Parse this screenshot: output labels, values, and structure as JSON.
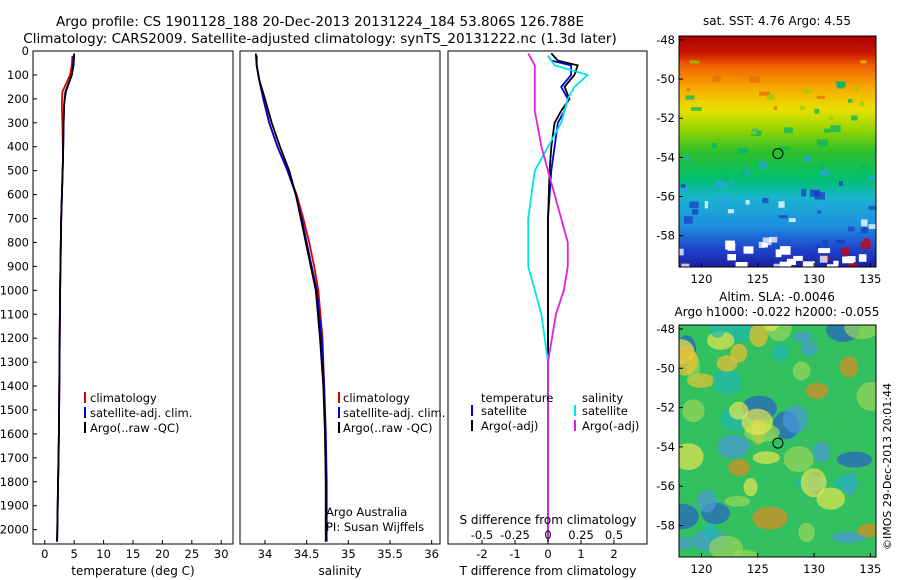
{
  "header": {
    "line1": "Argo profile: CS 1901128_188 20-Dec-2013 20131224_184 53.806S 126.788E",
    "line2": "Climatology: CARS2009. Satellite-adjusted climatology: synTS_20131222.nc (1.3d later)"
  },
  "colors": {
    "climatology": "#dd0000",
    "satellite": "#0000dd",
    "argo": "#000000",
    "sat_salinity": "#00e5e5",
    "argo_salinity": "#dd22dd"
  },
  "depth_axis": {
    "ylim": [
      0,
      2060
    ],
    "ticks": [
      "0",
      "100",
      "200",
      "300",
      "400",
      "500",
      "600",
      "700",
      "800",
      "900",
      "1000",
      "1100",
      "1200",
      "1300",
      "1400",
      "1500",
      "1600",
      "1700",
      "1800",
      "1900",
      "2000"
    ]
  },
  "chart_data": [
    {
      "type": "line",
      "xlabel": "temperature (deg C)",
      "ylabel": "",
      "xlim": [
        -2,
        32
      ],
      "ylim": [
        0,
        2060
      ],
      "xticks": [
        "0",
        "5",
        "10",
        "15",
        "20",
        "25",
        "30"
      ],
      "legend": {
        "placement": "bottom-left",
        "entries": [
          "climatology",
          "satellite-adj. clim.",
          "Argo(..raw -QC)"
        ]
      },
      "series": [
        {
          "name": "climatology",
          "x": [
            4.7,
            4.6,
            4.3,
            3.0,
            2.9,
            3.0,
            3.1,
            2.8,
            2.6,
            2.5,
            2.4,
            2.2,
            2.1
          ],
          "y": [
            20,
            60,
            100,
            170,
            220,
            300,
            450,
            700,
            1000,
            1300,
            1600,
            1900,
            2050
          ]
        },
        {
          "name": "satellite-adj. clim.",
          "x": [
            4.9,
            4.8,
            4.6,
            3.6,
            3.3,
            3.2,
            3.1,
            2.8,
            2.6,
            2.5,
            2.4,
            2.2,
            2.1
          ],
          "y": [
            20,
            60,
            100,
            170,
            220,
            300,
            450,
            700,
            1000,
            1300,
            1600,
            1900,
            2050
          ]
        },
        {
          "name": "Argo(..raw -QC)",
          "x": [
            5.0,
            4.9,
            4.6,
            3.5,
            3.3,
            3.2,
            3.1,
            2.8,
            2.6,
            2.5,
            2.4,
            2.2,
            2.1
          ],
          "y": [
            10,
            60,
            100,
            170,
            220,
            300,
            450,
            700,
            1000,
            1300,
            1600,
            1900,
            2050
          ]
        }
      ]
    },
    {
      "type": "line",
      "xlabel": "salinity",
      "ylabel": "",
      "xlim": [
        33.7,
        36.1
      ],
      "ylim": [
        0,
        2060
      ],
      "xticks": [
        "34",
        "34.5",
        "35",
        "35.5",
        "36"
      ],
      "legend": {
        "placement": "bottom-right",
        "entries": [
          "climatology",
          "satellite-adj. clim.",
          "Argo(..raw -QC)"
        ]
      },
      "annotations": [
        "Argo Australia",
        "PI: Susan Wijffels"
      ],
      "series": [
        {
          "name": "climatology",
          "x": [
            33.9,
            33.9,
            33.93,
            33.98,
            34.05,
            34.15,
            34.27,
            34.38,
            34.46,
            34.53,
            34.59,
            34.64,
            34.69,
            34.71,
            34.72,
            34.73,
            34.73
          ],
          "y": [
            20,
            60,
            120,
            200,
            300,
            400,
            500,
            600,
            700,
            800,
            900,
            1000,
            1200,
            1400,
            1600,
            1800,
            2050
          ]
        },
        {
          "name": "satellite-adj. clim.",
          "x": [
            33.9,
            33.9,
            33.93,
            33.98,
            34.05,
            34.15,
            34.27,
            34.37,
            34.44,
            34.5,
            34.56,
            34.62,
            34.68,
            34.71,
            34.73,
            34.74,
            34.74
          ],
          "y": [
            20,
            60,
            120,
            200,
            300,
            400,
            500,
            600,
            700,
            800,
            900,
            1000,
            1200,
            1400,
            1600,
            1800,
            2050
          ]
        },
        {
          "name": "Argo(..raw -QC)",
          "x": [
            33.89,
            33.9,
            33.93,
            34.0,
            34.08,
            34.18,
            34.29,
            34.37,
            34.43,
            34.49,
            34.55,
            34.61,
            34.66,
            34.7,
            34.72,
            34.73,
            34.73
          ],
          "y": [
            10,
            60,
            120,
            200,
            300,
            400,
            500,
            600,
            700,
            800,
            900,
            1000,
            1200,
            1400,
            1600,
            1800,
            2050
          ]
        }
      ]
    },
    {
      "type": "line",
      "xlabel": "T difference from climatology",
      "xlabel_top": "S difference from climatology",
      "ylabel": "",
      "xlim": [
        -2.6,
        2.6
      ],
      "ylim": [
        0,
        2060
      ],
      "xticks": [
        "-2",
        "-1.5",
        "-1",
        "-0.5",
        "0",
        "0.5",
        "1",
        "1.5",
        "2"
      ],
      "xticks_s": [
        "-0.5",
        "-0.25",
        "0",
        "0.25",
        "0.5"
      ],
      "legend": {
        "placement": "bottom",
        "headers": [
          "temperature",
          "salinity"
        ],
        "entries": [
          "satellite",
          "Argo(-adj)",
          "satellite",
          "Argo(-adj)"
        ]
      },
      "series": [
        {
          "name": "temperature satellite",
          "x": [
            0,
            0.1,
            0.7,
            0.7,
            0.4,
            0.6,
            0.5,
            0.3,
            0.2,
            0.1,
            0.0,
            0.0,
            0.0,
            0.0,
            0.0,
            0.0
          ],
          "y": [
            20,
            40,
            60,
            100,
            150,
            200,
            250,
            300,
            400,
            500,
            700,
            900,
            1100,
            1400,
            1700,
            2050
          ]
        },
        {
          "name": "temperature Argo(-adj)",
          "x": [
            0.1,
            0.3,
            0.9,
            0.8,
            0.5,
            0.65,
            0.4,
            0.2,
            0.1,
            0.05,
            0.0,
            0.0,
            0.0,
            0.0,
            0.0,
            0.0
          ],
          "y": [
            10,
            40,
            60,
            100,
            150,
            200,
            250,
            300,
            400,
            500,
            700,
            900,
            1100,
            1400,
            1700,
            2050
          ]
        },
        {
          "name": "salinity satellite",
          "x": [
            0.0,
            0.05,
            0.3,
            0.2,
            0.15,
            0.1,
            0.0,
            -0.1,
            -0.15,
            -0.15,
            -0.1,
            -0.05,
            0.0,
            0.0,
            0.0
          ],
          "y": [
            20,
            60,
            100,
            150,
            200,
            300,
            400,
            500,
            700,
            900,
            1000,
            1100,
            1300,
            1600,
            2050
          ]
        },
        {
          "name": "salinity Argo(-adj)",
          "x": [
            -0.15,
            -0.1,
            -0.1,
            -0.1,
            -0.05,
            0.0,
            0.05,
            0.1,
            0.15,
            0.15,
            0.12,
            0.06,
            0.0,
            0.0
          ],
          "y": [
            10,
            60,
            150,
            250,
            400,
            500,
            600,
            700,
            800,
            900,
            1000,
            1100,
            1300,
            2050
          ]
        }
      ]
    },
    {
      "type": "heatmap",
      "title": "sat. SST: 4.76 Argo: 4.55",
      "xlim": [
        118,
        135.5
      ],
      "ylim": [
        -59.6,
        -47.8
      ],
      "xticks": [
        "120",
        "125",
        "130",
        "135"
      ],
      "yticks": [
        "-48",
        "-50",
        "-52",
        "-54",
        "-56",
        "-58"
      ],
      "marker": {
        "lon": 126.788,
        "lat": -53.806
      }
    },
    {
      "type": "heatmap",
      "title": "Altim. SLA: -0.0046",
      "subtitle": "Argo h1000: -0.022 h2000: -0.055",
      "xlim": [
        118,
        135.5
      ],
      "ylim": [
        -59.6,
        -47.8
      ],
      "xticks": [
        "120",
        "125",
        "130",
        "135"
      ],
      "yticks": [
        "-48",
        "-50",
        "-52",
        "-54",
        "-56",
        "-58"
      ],
      "marker": {
        "lon": 126.788,
        "lat": -53.806
      },
      "stamp": "©IMOS 29-Dec-2013 20:01:44"
    }
  ]
}
